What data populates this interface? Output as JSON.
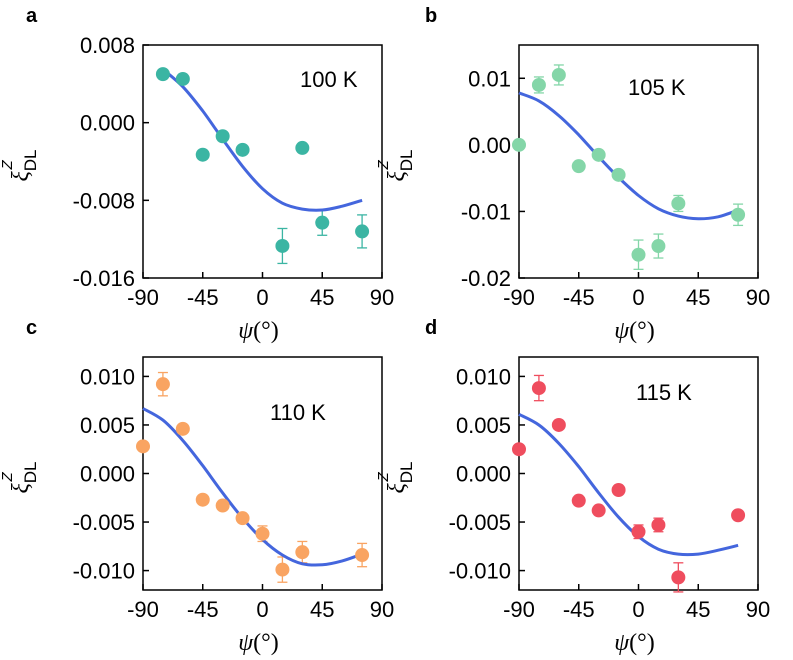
{
  "chart_data": [
    {
      "type": "scatter",
      "panel_label": "a",
      "condition": "100 K",
      "color": "#3bb5a3",
      "xlabel": "ψ(°)",
      "ylabel": "ξ_DL^Z",
      "xlim": [
        -90,
        90
      ],
      "ylim": [
        -0.016,
        0.008
      ],
      "xticks": [
        -90,
        -45,
        0,
        45,
        90
      ],
      "xtick_labels": [
        "-90",
        "-45",
        "0",
        "45",
        "90"
      ],
      "yticks": [
        -0.016,
        -0.008,
        0.0,
        0.008
      ],
      "ytick_labels": [
        "-0.016",
        "-0.008",
        "0.000",
        "0.008"
      ],
      "points": [
        {
          "x": -75,
          "y": 0.005,
          "err": 0
        },
        {
          "x": -60,
          "y": 0.0045,
          "err": 0
        },
        {
          "x": -45,
          "y": -0.0033,
          "err": 0
        },
        {
          "x": -30,
          "y": -0.0014,
          "err": 0
        },
        {
          "x": -15,
          "y": -0.0028,
          "err": 0
        },
        {
          "x": 15,
          "y": -0.0127,
          "err": 0.0018
        },
        {
          "x": 30,
          "y": -0.0026,
          "err": 0
        },
        {
          "x": 45,
          "y": -0.0103,
          "err": 0.0013
        },
        {
          "x": 75,
          "y": -0.0112,
          "err": 0.0017
        }
      ],
      "fit": {
        "x": [
          -75,
          -60,
          -45,
          -30,
          -15,
          0,
          15,
          30,
          45,
          60,
          75
        ],
        "y": [
          0.0055,
          0.0037,
          0.0012,
          -0.0017,
          -0.0045,
          -0.0068,
          -0.0083,
          -0.0089,
          -0.009,
          -0.0086,
          -0.008
        ]
      }
    },
    {
      "type": "scatter",
      "panel_label": "b",
      "condition": "105 K",
      "color": "#84d6a8",
      "xlabel": "ψ(°)",
      "ylabel": "ξ_DL^Z",
      "xlim": [
        -90,
        90
      ],
      "ylim": [
        -0.02,
        0.015
      ],
      "xticks": [
        -90,
        -45,
        0,
        45,
        90
      ],
      "xtick_labels": [
        "-90",
        "-45",
        "0",
        "45",
        "90"
      ],
      "yticks": [
        -0.02,
        -0.01,
        0.0,
        0.01
      ],
      "ytick_labels": [
        "-0.02",
        "-0.01",
        "0.00",
        "0.01"
      ],
      "points": [
        {
          "x": -90,
          "y": 0.0,
          "err": 0
        },
        {
          "x": -75,
          "y": 0.009,
          "err": 0.0012
        },
        {
          "x": -60,
          "y": 0.0105,
          "err": 0.0015
        },
        {
          "x": -45,
          "y": -0.0032,
          "err": 0
        },
        {
          "x": -30,
          "y": -0.0015,
          "err": 0
        },
        {
          "x": -15,
          "y": -0.0045,
          "err": 0
        },
        {
          "x": 0,
          "y": -0.0165,
          "err": 0.0022
        },
        {
          "x": 15,
          "y": -0.0152,
          "err": 0.0018
        },
        {
          "x": 30,
          "y": -0.0088,
          "err": 0.0012
        },
        {
          "x": 75,
          "y": -0.0105,
          "err": 0.0016
        }
      ],
      "fit": {
        "x": [
          -90,
          -75,
          -60,
          -45,
          -30,
          -15,
          0,
          15,
          30,
          45,
          60,
          75
        ],
        "y": [
          0.0078,
          0.0066,
          0.0044,
          0.0015,
          -0.0018,
          -0.0049,
          -0.0076,
          -0.0096,
          -0.0107,
          -0.0111,
          -0.0108,
          -0.0098
        ]
      }
    },
    {
      "type": "scatter",
      "panel_label": "c",
      "condition": "110 K",
      "color": "#f9a462",
      "xlabel": "ψ(°)",
      "ylabel": "ξ_DL^Z",
      "xlim": [
        -90,
        90
      ],
      "ylim": [
        -0.012,
        0.012
      ],
      "xticks": [
        -90,
        -45,
        0,
        45,
        90
      ],
      "xtick_labels": [
        "-90",
        "-45",
        "0",
        "45",
        "90"
      ],
      "yticks": [
        -0.01,
        -0.005,
        0.0,
        0.005,
        0.01
      ],
      "ytick_labels": [
        "-0.010",
        "-0.005",
        "0.000",
        "0.005",
        "0.010"
      ],
      "points": [
        {
          "x": -90,
          "y": 0.0028,
          "err": 0
        },
        {
          "x": -75,
          "y": 0.0092,
          "err": 0.0012
        },
        {
          "x": -60,
          "y": 0.0046,
          "err": 0
        },
        {
          "x": -45,
          "y": -0.0027,
          "err": 0
        },
        {
          "x": -30,
          "y": -0.0033,
          "err": 0
        },
        {
          "x": -15,
          "y": -0.0046,
          "err": 0
        },
        {
          "x": 0,
          "y": -0.0062,
          "err": 0.0008
        },
        {
          "x": 15,
          "y": -0.0099,
          "err": 0.0013
        },
        {
          "x": 30,
          "y": -0.0081,
          "err": 0.0011
        },
        {
          "x": 75,
          "y": -0.0084,
          "err": 0.0012
        }
      ],
      "fit": {
        "x": [
          -90,
          -75,
          -60,
          -45,
          -30,
          -15,
          0,
          15,
          30,
          45,
          60,
          75
        ],
        "y": [
          0.0067,
          0.0055,
          0.0034,
          0.0008,
          -0.002,
          -0.0046,
          -0.0068,
          -0.0084,
          -0.0093,
          -0.0094,
          -0.009,
          -0.0083
        ]
      }
    },
    {
      "type": "scatter",
      "panel_label": "d",
      "condition": "115 K",
      "color": "#ef4d5e",
      "xlabel": "ψ(°)",
      "ylabel": "ξ_DL^Z",
      "xlim": [
        -90,
        90
      ],
      "ylim": [
        -0.012,
        0.012
      ],
      "xticks": [
        -90,
        -45,
        0,
        45,
        90
      ],
      "xtick_labels": [
        "-90",
        "-45",
        "0",
        "45",
        "90"
      ],
      "yticks": [
        -0.01,
        -0.005,
        0.0,
        0.005,
        0.01
      ],
      "ytick_labels": [
        "-0.010",
        "-0.005",
        "0.000",
        "0.005",
        "0.010"
      ],
      "points": [
        {
          "x": -90,
          "y": 0.0025,
          "err": 0
        },
        {
          "x": -75,
          "y": 0.0088,
          "err": 0.0013
        },
        {
          "x": -60,
          "y": 0.005,
          "err": 0
        },
        {
          "x": -45,
          "y": -0.0028,
          "err": 0
        },
        {
          "x": -30,
          "y": -0.0038,
          "err": 0
        },
        {
          "x": -15,
          "y": -0.0017,
          "err": 0
        },
        {
          "x": 0,
          "y": -0.006,
          "err": 0.0007
        },
        {
          "x": 15,
          "y": -0.0053,
          "err": 0.0007
        },
        {
          "x": 30,
          "y": -0.0107,
          "err": 0.0015
        },
        {
          "x": 75,
          "y": -0.0043,
          "err": 0
        }
      ],
      "fit": {
        "x": [
          -90,
          -75,
          -60,
          -45,
          -30,
          -15,
          0,
          15,
          30,
          45,
          60,
          75
        ],
        "y": [
          0.0061,
          0.005,
          0.0031,
          0.0007,
          -0.002,
          -0.0045,
          -0.0065,
          -0.0078,
          -0.0083,
          -0.0083,
          -0.0079,
          -0.0074
        ]
      }
    }
  ],
  "colors": {
    "fit_line": "#4466dd",
    "axis": "#000000"
  }
}
